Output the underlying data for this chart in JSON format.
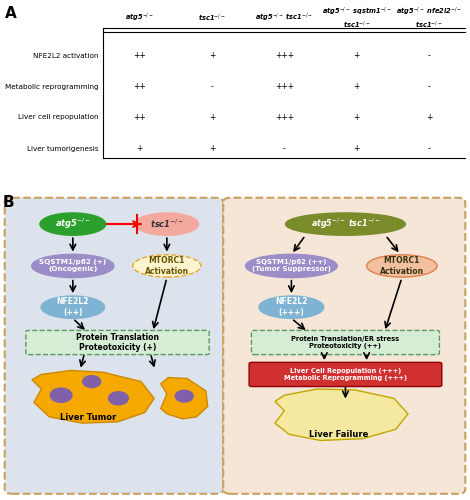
{
  "panel_A": {
    "label": "A",
    "col_headers": [
      "atg5$^{-/-}$",
      "tsc1$^{-/-}$",
      "atg5$^{-/-}$ tsc1$^{-/-}$",
      "atg5$^{-/-}$ sqstm1$^{-/-}$\ntsc1$^{-/-}$",
      "atg5$^{-/-}$ nfe2l2$^{-/-}$\ntsc1$^{-/-}$"
    ],
    "row_headers": [
      "NFE2L2 activation",
      "Metabolic reprogramming",
      "Liver cell repopulation",
      "Liver tumorigenesis"
    ],
    "data": [
      [
        "++",
        "+",
        "+++",
        "+",
        "-"
      ],
      [
        "++",
        "-",
        "+++",
        "+",
        "-"
      ],
      [
        "++",
        "+",
        "+++",
        "+",
        "+"
      ],
      [
        "+",
        "+",
        "-",
        "+",
        "-"
      ]
    ]
  },
  "panel_B": {
    "label": "B",
    "left_panel": {
      "bg_color": "#dde3ec",
      "atg5_label": "atg5$^{-/-}$",
      "atg5_color": "#2ca02c",
      "tsc1_label": "tsc1$^{-/-}$",
      "tsc1_color": "#f4a99e",
      "sqstm1_label": "SQSTM1/p62 (+)\n(Oncogenic)",
      "sqstm1_color": "#9b8dc8",
      "mtorc1_label": "MTORC1\nActivation",
      "mtorc1_color": "#fef5d0",
      "mtorc1_border": "#e8a830",
      "nfe2l2_label": "NFE2L2\n(++)",
      "nfe2l2_color": "#7fb3d3",
      "protein_label": "Protein Translation\nProteotoxicity (+)",
      "protein_color": "#d5ecd5",
      "protein_border": "#5a9a5a",
      "liver_tumor_label": "Liver Tumor",
      "liver_color": "#f5a800",
      "tumor_color": "#8060a8"
    },
    "right_panel": {
      "bg_color": "#f5e6d8",
      "atg5tsc1_label": "atg5$^{-/-}$ tsc1$^{-/-}$",
      "atg5tsc1_color": "#7a8c2a",
      "sqstm1_label": "SQSTM1/p62 (++)\n(Tumor Suppressor)",
      "sqstm1_color": "#9b8dc8",
      "mtorc1_label": "MTORC1\nActivation",
      "mtorc1_color": "#f5c0a0",
      "nfe2l2_label": "NFE2L2\n(+++)",
      "nfe2l2_color": "#7fb3d3",
      "protein_label": "Protein Translation/ER stress\nProteotoxicity (++)",
      "protein_color": "#d5ecd5",
      "protein_border": "#5a9a5a",
      "repop_label": "Liver Cell Repopulation (+++)\nMetabolic Reprogramming (+++)",
      "repop_color": "#d03030",
      "liver_label": "Liver Failure",
      "liver_color": "#f5e8a0"
    }
  }
}
